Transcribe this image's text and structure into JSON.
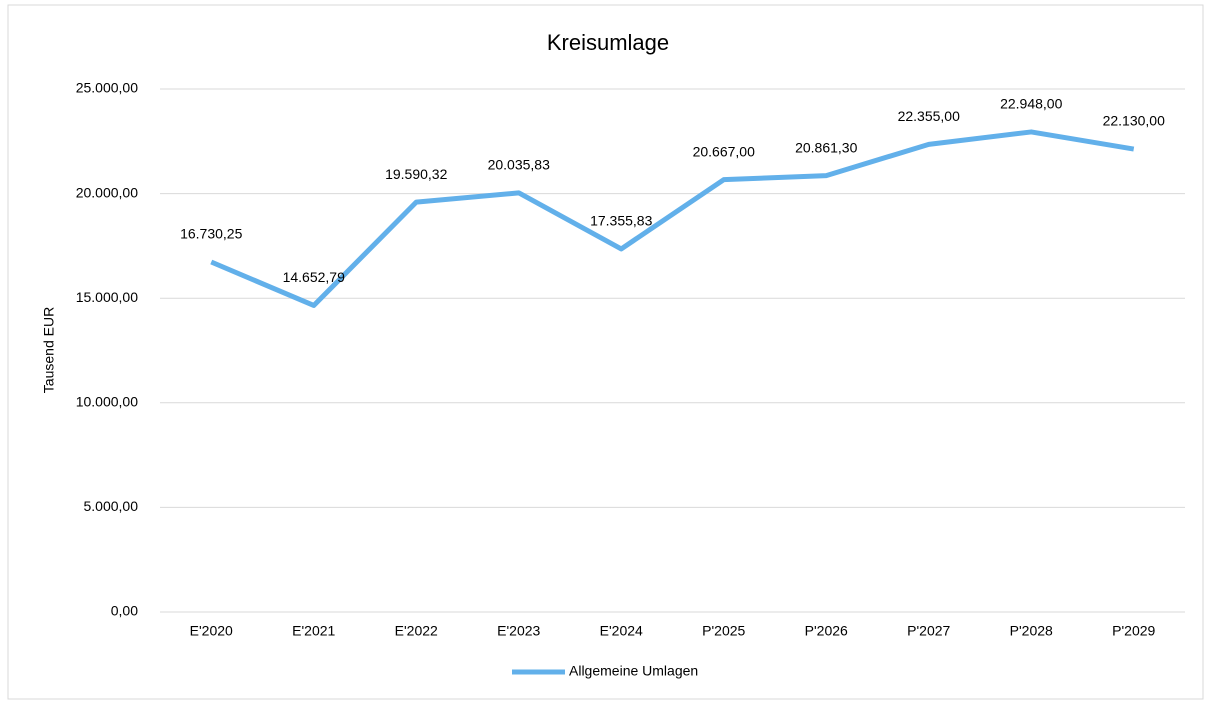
{
  "chart_data": {
    "type": "line",
    "title": "Kreisumlage",
    "y_label": "Tausend EUR",
    "categories": [
      "E'2020",
      "E'2021",
      "E'2022",
      "E'2023",
      "E'2024",
      "P'2025",
      "P'2026",
      "P'2027",
      "P'2028",
      "P'2029"
    ],
    "series": [
      {
        "name": "Allgemeine Umlagen",
        "color": "#62b0ea",
        "values": [
          16730.25,
          14652.79,
          19590.32,
          20035.83,
          17355.83,
          20667.0,
          20861.3,
          22355.0,
          22948.0,
          22130.0
        ],
        "value_labels": [
          "16.730,25",
          "14.652,79",
          "19.590,32",
          "20.035,83",
          "17.355,83",
          "20.667,00",
          "20.861,30",
          "22.355,00",
          "22.948,00",
          "22.130,00"
        ]
      }
    ],
    "ylim": [
      0,
      25000
    ],
    "yticks": [
      {
        "value": 0,
        "label": "0,00"
      },
      {
        "value": 5000,
        "label": "5.000,00"
      },
      {
        "value": 10000,
        "label": "10.000,00"
      },
      {
        "value": 15000,
        "label": "15.000,00"
      },
      {
        "value": 20000,
        "label": "20.000,00"
      },
      {
        "value": 25000,
        "label": "25.000,00"
      }
    ],
    "grid": true,
    "legend": "bottom"
  }
}
